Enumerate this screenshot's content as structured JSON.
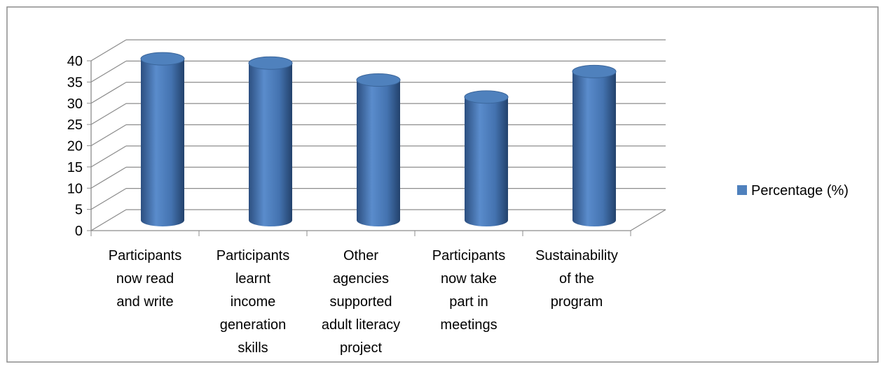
{
  "chart_data": {
    "type": "bar3d",
    "categories": [
      [
        "Participants",
        "now read",
        "and write"
      ],
      [
        "Participants",
        "learnt",
        "income",
        "generation",
        "skills"
      ],
      [
        "Other",
        "agencies",
        "supported",
        "adult literacy",
        "project"
      ],
      [
        "Participants",
        "now take",
        "part in",
        "meetings"
      ],
      [
        "Sustainability",
        "of the",
        "program"
      ]
    ],
    "series": [
      {
        "name": "Percentage (%)",
        "color": "#4f81bd",
        "values": [
          38,
          37,
          33,
          29,
          35
        ]
      }
    ],
    "ylim": [
      0,
      40
    ],
    "yticks": [
      0,
      5,
      10,
      15,
      20,
      25,
      30,
      35,
      40
    ],
    "grid": true,
    "legend": "right"
  }
}
